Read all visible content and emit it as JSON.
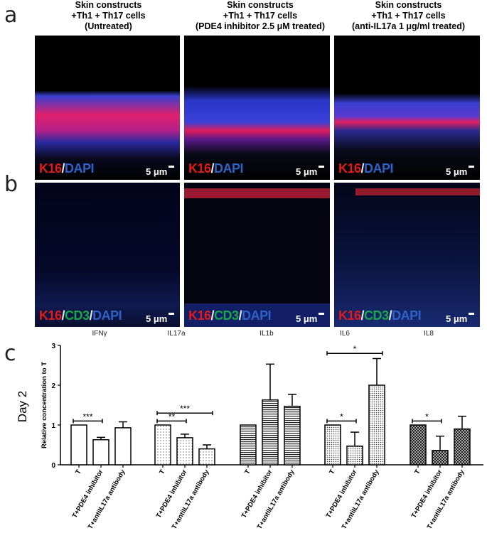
{
  "figure": {
    "panel_a_letter": "a",
    "panel_b_letter": "b",
    "panel_c_letter": "c",
    "columns": [
      {
        "line1": "Skin constructs",
        "line2": "+Th1 + Th17 cells",
        "line3": "(Untreated)"
      },
      {
        "line1": "Skin constructs",
        "line2": "+Th1 + Th17 cells",
        "line3": "(PDE4 inhibitor 2.5 μM treated)"
      },
      {
        "line1": "Skin constructs",
        "line2": "+Th1 + Th17 cells",
        "line3": "(anti-IL17a 1 μg/ml treated)"
      }
    ],
    "stain_a": {
      "k16": "K16",
      "sep": "/",
      "dapi": "DAPI"
    },
    "stain_b": {
      "k16": "K16",
      "sep1": "/",
      "cd3": "CD3",
      "sep2": "/",
      "dapi": "DAPI"
    },
    "scale_label": "5 μm"
  },
  "chart_data": {
    "type": "bar",
    "ylabel": "Relative concentration to T",
    "side_label": "Day 2",
    "ylim": [
      0,
      3
    ],
    "yticks": [
      0,
      1,
      2,
      3
    ],
    "groups": [
      {
        "name": "IFNγ",
        "pattern": "open",
        "categories": [
          "T",
          "T+PDE4 inhibitor",
          "T+antiIL17a antibody"
        ],
        "values": [
          1.0,
          0.63,
          0.93
        ],
        "errors": [
          0,
          0.06,
          0.15
        ],
        "sig": [
          {
            "from": 0,
            "to": 1,
            "label": "***"
          }
        ]
      },
      {
        "name": "IL17a",
        "pattern": "dots",
        "categories": [
          "T",
          "T+PDE4 inhibitor",
          "T+antiIL17a antibody"
        ],
        "values": [
          1.0,
          0.68,
          0.4
        ],
        "errors": [
          0,
          0.09,
          0.1
        ],
        "sig": [
          {
            "from": 0,
            "to": 1,
            "label": "**"
          },
          {
            "from": 0,
            "to": 2,
            "label": "***"
          }
        ]
      },
      {
        "name": "IL1b",
        "pattern": "hlines",
        "categories": [
          "T",
          "T+PDE4 inhibitor",
          "T+antiIL17a antibody"
        ],
        "values": [
          1.0,
          1.63,
          1.47
        ],
        "errors": [
          0,
          0.9,
          0.3
        ],
        "sig": []
      },
      {
        "name": "IL6",
        "pattern": "dense-dots",
        "categories": [
          "T",
          "T+PDE4 inhibitor",
          "T+antiIL17a antibody"
        ],
        "values": [
          1.0,
          0.47,
          2.0
        ],
        "errors": [
          0,
          0.35,
          0.67
        ],
        "sig": [
          {
            "from": 0,
            "to": 1,
            "label": "*"
          },
          {
            "from": 0,
            "to": 2,
            "label": "*"
          }
        ]
      },
      {
        "name": "IL8",
        "pattern": "cross",
        "categories": [
          "T",
          "T+PDE4 inhibitor",
          "T+antiIL17a antibody"
        ],
        "values": [
          1.0,
          0.36,
          0.9
        ],
        "errors": [
          0,
          0.36,
          0.32
        ],
        "sig": [
          {
            "from": 0,
            "to": 1,
            "label": "*"
          }
        ]
      }
    ]
  }
}
